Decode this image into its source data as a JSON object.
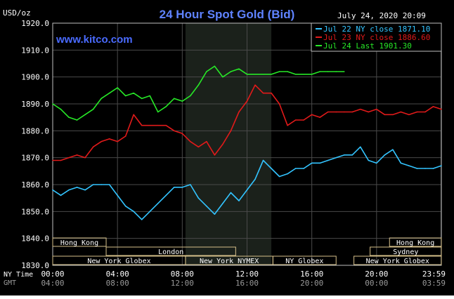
{
  "chart_data": {
    "type": "line",
    "title": "24 Hour Spot Gold (Bid)",
    "timestamp": "July 24, 2020 20:09",
    "watermark": "www.kitco.com",
    "ylabel": "USD/oz",
    "ylim": [
      1830,
      1920
    ],
    "yticks": [
      "1920.0",
      "1910.0",
      "1900.0",
      "1890.0",
      "1880.0",
      "1870.0",
      "1860.0",
      "1850.0",
      "1840.0",
      "1830.0"
    ],
    "xlim": [
      0,
      24
    ],
    "xrow_labels": [
      "NY Time",
      "GMT"
    ],
    "xticks_ny": [
      "00:00",
      "04:00",
      "08:00",
      "12:00",
      "16:00",
      "20:00",
      "23:59"
    ],
    "xticks_gmt": [
      "04:00",
      "08:00",
      "12:00",
      "16:00",
      "20:00",
      "00:00",
      "03:59"
    ],
    "shaded_range": [
      8.2,
      13.5
    ],
    "grid": true,
    "legend_position": "top-right",
    "series": [
      {
        "name": "Jul 22 NY close 1871.10",
        "color": "#33c4ff",
        "x": [
          0,
          0.5,
          1,
          1.5,
          2,
          2.5,
          3,
          3.5,
          4,
          4.5,
          5,
          5.5,
          6,
          6.5,
          7,
          7.5,
          8,
          8.5,
          9,
          9.5,
          10,
          10.5,
          11,
          11.5,
          12,
          12.5,
          13,
          13.5,
          14,
          14.5,
          15,
          15.5,
          16,
          16.5,
          17,
          17.5,
          18,
          18.5,
          19,
          19.5,
          20,
          20.5,
          21,
          21.5,
          22,
          22.5,
          23,
          23.5,
          24
        ],
        "values": [
          1858,
          1856,
          1858,
          1859,
          1858,
          1860,
          1860,
          1860,
          1856,
          1852,
          1850,
          1847,
          1850,
          1853,
          1856,
          1859,
          1859,
          1860,
          1855,
          1852,
          1849,
          1853,
          1857,
          1854,
          1858,
          1862,
          1869,
          1866,
          1863,
          1864,
          1866,
          1866,
          1868,
          1868,
          1869,
          1870,
          1871,
          1871,
          1874,
          1869,
          1868,
          1871,
          1873,
          1868,
          1867,
          1866,
          1866,
          1866,
          1867
        ]
      },
      {
        "name": "Jul 23 NY close 1886.60",
        "color": "#e11a1a",
        "x": [
          0,
          0.5,
          1,
          1.5,
          2,
          2.5,
          3,
          3.5,
          4,
          4.5,
          5,
          5.5,
          6,
          6.5,
          7,
          7.5,
          8,
          8.5,
          9,
          9.5,
          10,
          10.5,
          11,
          11.5,
          12,
          12.5,
          13,
          13.5,
          14,
          14.5,
          15,
          15.5,
          16,
          16.5,
          17,
          17.5,
          18,
          18.5,
          19,
          19.5,
          20,
          20.5,
          21,
          21.5,
          22,
          22.5,
          23,
          23.5,
          24
        ],
        "values": [
          1869,
          1869,
          1870,
          1871,
          1870,
          1874,
          1876,
          1877,
          1876,
          1878,
          1886,
          1882,
          1882,
          1882,
          1882,
          1880,
          1879,
          1876,
          1874,
          1876,
          1871,
          1875,
          1880,
          1887,
          1891,
          1897,
          1894,
          1894,
          1890,
          1882,
          1884,
          1884,
          1886,
          1885,
          1887,
          1887,
          1887,
          1887,
          1888,
          1887,
          1888,
          1886,
          1886,
          1887,
          1886,
          1887,
          1887,
          1889,
          1888
        ]
      },
      {
        "name": "Jul 24 Last 1901.30",
        "color": "#27e827",
        "x": [
          0,
          0.5,
          1,
          1.5,
          2,
          2.5,
          3,
          3.5,
          4,
          4.5,
          5,
          5.5,
          6,
          6.5,
          7,
          7.5,
          8,
          8.5,
          9,
          9.5,
          10,
          10.5,
          11,
          11.5,
          12,
          12.5,
          13,
          13.5,
          14,
          14.5,
          15,
          15.5,
          16,
          16.5,
          17,
          17.5,
          18
        ],
        "values": [
          1890,
          1888,
          1885,
          1884,
          1886,
          1888,
          1892,
          1894,
          1896,
          1893,
          1894,
          1892,
          1893,
          1887,
          1889,
          1892,
          1891,
          1893,
          1897,
          1902,
          1904,
          1900,
          1902,
          1903,
          1901,
          1901,
          1901,
          1901,
          1902,
          1902,
          1901,
          1901,
          1901,
          1902,
          1902,
          1902,
          1902
        ]
      }
    ],
    "market_rows": [
      [
        {
          "label": "Hong Kong",
          "from": 0,
          "to": 3.3
        },
        {
          "label": "Hong Kong",
          "from": 20.8,
          "to": 24
        }
      ],
      [
        {
          "label": "London",
          "from": 3.3,
          "to": 11.3
        },
        {
          "label": "Sydney",
          "from": 19.6,
          "to": 24
        }
      ],
      [
        {
          "label": "New York Globex",
          "from": 0,
          "to": 8.2
        },
        {
          "label": "New York NYMEX",
          "from": 8.2,
          "to": 13.6
        },
        {
          "label": "NY Globex",
          "from": 13.6,
          "to": 17.5
        },
        {
          "label": "New York Globex",
          "from": 18.6,
          "to": 24
        }
      ]
    ]
  }
}
